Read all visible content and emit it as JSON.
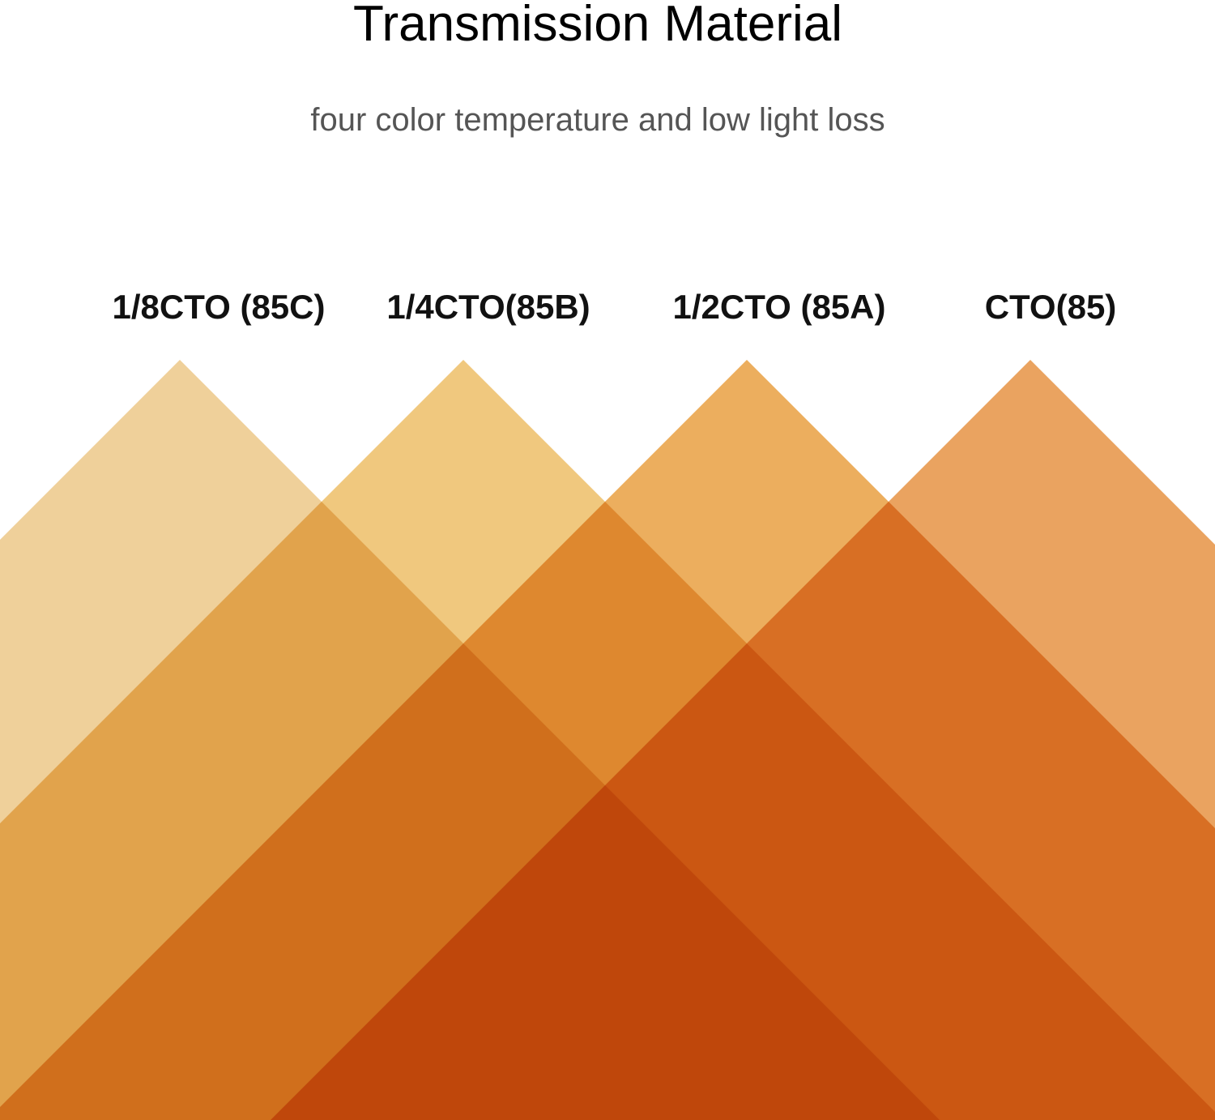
{
  "header": {
    "title": "Transmission Material",
    "subtitle": "four color temperature and low light loss"
  },
  "filters": [
    {
      "label": "1/8CTO (85C)"
    },
    {
      "label": "1/4CTO(85B)"
    },
    {
      "label": "1/2CTO (85A)"
    },
    {
      "label": "CTO(85)"
    }
  ]
}
